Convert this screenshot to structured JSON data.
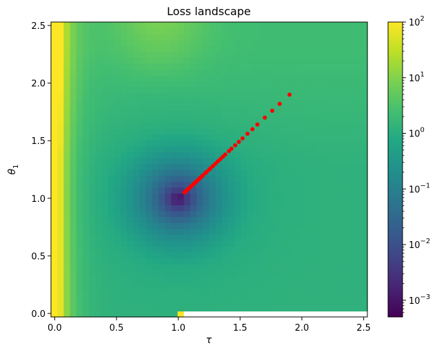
{
  "chart_data": {
    "type": "heatmap",
    "title": "Loss landscape",
    "xlabel": "τ",
    "ylabel": "θ",
    "ylabel_subscript": "1",
    "xlim": [
      -0.03,
      2.53
    ],
    "ylim": [
      -0.03,
      2.53
    ],
    "x_ticks": [
      0.0,
      0.5,
      1.0,
      1.5,
      2.0,
      2.5
    ],
    "y_ticks": [
      0.0,
      0.5,
      1.0,
      1.5,
      2.0,
      2.5
    ],
    "x_tick_labels": [
      "0.0",
      "0.5",
      "1.0",
      "1.5",
      "2.0",
      "2.5"
    ],
    "y_tick_labels": [
      "0.0",
      "0.5",
      "1.0",
      "1.5",
      "2.0",
      "2.5"
    ],
    "grid": false,
    "colormap": "viridis",
    "color_scale": "log",
    "colorbar": {
      "range_log10": [
        -3.3,
        2.0
      ],
      "ticks_exponent": [
        -3,
        -2,
        -1,
        0,
        1,
        2
      ],
      "tick_base": "10",
      "tick_exponent_labels": [
        "−3",
        "−2",
        "−1",
        "0",
        "1",
        "2"
      ]
    },
    "heatmap": {
      "grid_x_range": [
        -0.03,
        2.53
      ],
      "grid_y_range": [
        -0.03,
        2.53
      ],
      "nx": 50,
      "ny": 50,
      "minimum_at": [
        1.0,
        1.0
      ],
      "missing_region": "bottom row for τ > 1.05 (white)"
    },
    "series": [
      {
        "type": "scatter",
        "color": "#ff0000",
        "x": [
          1.9,
          1.82,
          1.76,
          1.7,
          1.64,
          1.6,
          1.56,
          1.52,
          1.49,
          1.46,
          1.43,
          1.41,
          1.38,
          1.36,
          1.34,
          1.32,
          1.3,
          1.28,
          1.26,
          1.25,
          1.23,
          1.22,
          1.2,
          1.19,
          1.18,
          1.17,
          1.16,
          1.15,
          1.14,
          1.13,
          1.12,
          1.11,
          1.1,
          1.09,
          1.08,
          1.07,
          1.06,
          1.05
        ],
        "y": [
          1.9,
          1.82,
          1.76,
          1.7,
          1.64,
          1.6,
          1.56,
          1.52,
          1.49,
          1.46,
          1.43,
          1.41,
          1.38,
          1.36,
          1.34,
          1.32,
          1.3,
          1.28,
          1.26,
          1.25,
          1.23,
          1.22,
          1.2,
          1.19,
          1.18,
          1.17,
          1.16,
          1.15,
          1.14,
          1.13,
          1.12,
          1.11,
          1.1,
          1.09,
          1.08,
          1.07,
          1.06,
          1.05
        ]
      }
    ]
  }
}
